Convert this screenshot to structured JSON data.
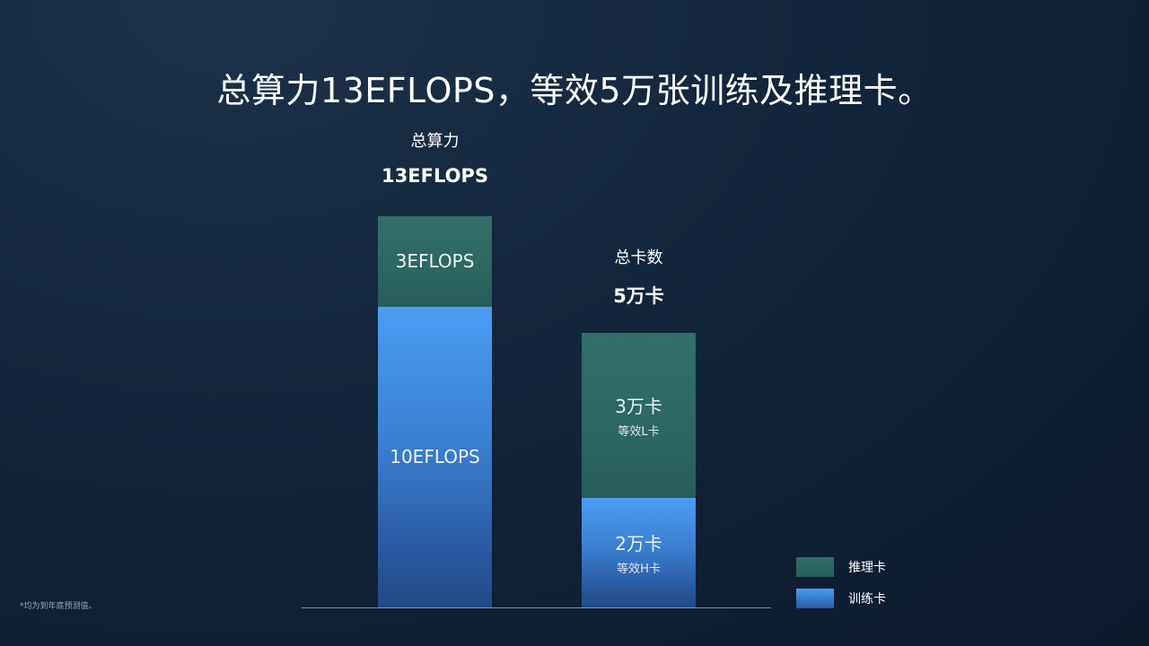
{
  "title": "总算力13EFLOPS，等效5万张训练及推理卡。",
  "footnote": "*均为到年底预测值。",
  "colors": {
    "inference": "#2d6762",
    "training": "#3b82d6",
    "background": "#13263d"
  },
  "chart_data": {
    "type": "bar",
    "stacked": true,
    "categories": [
      "总算力",
      "总卡数"
    ],
    "bars": [
      {
        "header_label": "总算力",
        "header_value": "13EFLOPS",
        "total": 13,
        "unit": "EFLOPS",
        "segments": [
          {
            "series": "训练卡",
            "value": 10,
            "label": "10EFLOPS",
            "sublabel": ""
          },
          {
            "series": "推理卡",
            "value": 3,
            "label": "3EFLOPS",
            "sublabel": ""
          }
        ]
      },
      {
        "header_label": "总卡数",
        "header_value": "5万卡",
        "total": 5,
        "unit": "万卡",
        "segments": [
          {
            "series": "训练卡",
            "value": 2,
            "label": "2万卡",
            "sublabel": "等效H卡"
          },
          {
            "series": "推理卡",
            "value": 3,
            "label": "3万卡",
            "sublabel": "等效L卡"
          }
        ]
      }
    ],
    "legend": {
      "position": "bottom-right",
      "entries": [
        {
          "name": "推理卡",
          "color": "#2d6762"
        },
        {
          "name": "训练卡",
          "color": "#3b82d6"
        }
      ]
    },
    "grid": false
  }
}
